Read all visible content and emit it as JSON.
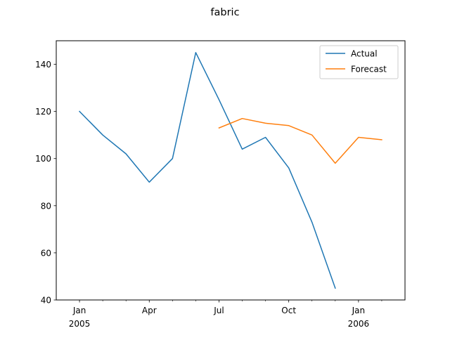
{
  "chart_data": {
    "type": "line",
    "title": "fabric",
    "xlabel": "",
    "ylabel": "",
    "x_ticks_major": [
      {
        "date": "2005-01",
        "label": "Jan",
        "sublabel": "2005"
      },
      {
        "date": "2005-04",
        "label": "Apr",
        "sublabel": ""
      },
      {
        "date": "2005-07",
        "label": "Jul",
        "sublabel": ""
      },
      {
        "date": "2005-10",
        "label": "Oct",
        "sublabel": ""
      },
      {
        "date": "2006-01",
        "label": "Jan",
        "sublabel": "2006"
      }
    ],
    "x_ticks_minor": [
      "2005-02",
      "2005-03",
      "2005-05",
      "2005-06",
      "2005-08",
      "2005-09",
      "2005-11",
      "2005-12",
      "2006-02"
    ],
    "xlim": [
      "2004-12",
      "2006-03"
    ],
    "ylim": [
      40,
      150
    ],
    "y_ticks": [
      40,
      60,
      80,
      100,
      120,
      140
    ],
    "legend_position": "top-right",
    "series": [
      {
        "name": "Actual",
        "color": "#1f77b4",
        "x": [
          "2005-01",
          "2005-02",
          "2005-03",
          "2005-04",
          "2005-05",
          "2005-06",
          "2005-07",
          "2005-08",
          "2005-09",
          "2005-10",
          "2005-11",
          "2005-12"
        ],
        "values": [
          120,
          110,
          102,
          90,
          100,
          145,
          125,
          104,
          109,
          96,
          73,
          45
        ]
      },
      {
        "name": "Forecast",
        "color": "#ff7f0e",
        "x": [
          "2005-07",
          "2005-08",
          "2005-09",
          "2005-10",
          "2005-11",
          "2005-12",
          "2006-01",
          "2006-02"
        ],
        "values": [
          113,
          117,
          115,
          114,
          110,
          98,
          109,
          108
        ]
      }
    ]
  }
}
